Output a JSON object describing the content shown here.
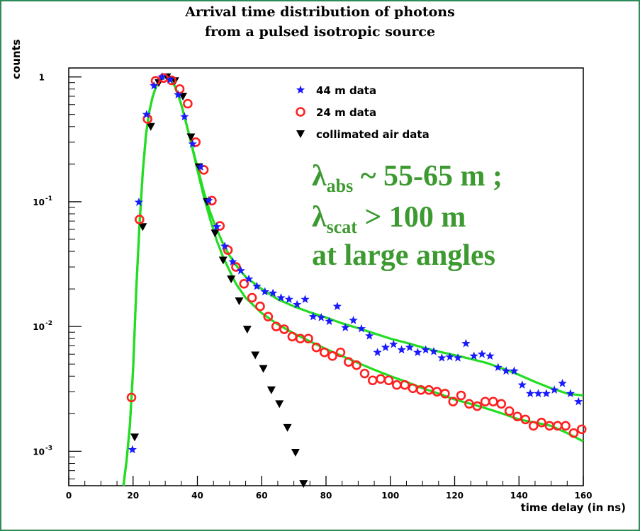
{
  "chart_data": {
    "type": "scatter",
    "title": "Arrival time distribution of photons",
    "subtitle": "from a pulsed isotropic source",
    "xlabel": "time delay (in ns)",
    "ylabel": "counts",
    "xlim": [
      0,
      160
    ],
    "ylim": [
      0.00053,
      1.18
    ],
    "yscale": "log",
    "xticks": [
      "0",
      "20",
      "40",
      "60",
      "80",
      "100",
      "120",
      "140",
      "160"
    ],
    "yticks": [
      {
        "value": 1,
        "label": "1",
        "exp": ""
      },
      {
        "value": 0.1,
        "label": "10",
        "exp": "-1"
      },
      {
        "value": 0.01,
        "label": "10",
        "exp": "-2"
      },
      {
        "value": 0.001,
        "label": "10",
        "exp": "-3"
      }
    ],
    "grid": false,
    "legend_position": "top-right",
    "series": [
      {
        "name": "44 m data",
        "marker": "star",
        "color": "#1a1aff",
        "points": [
          [
            19.8,
            0.00103
          ],
          [
            21.8,
            0.099
          ],
          [
            24.2,
            0.5
          ],
          [
            26.5,
            0.85
          ],
          [
            29,
            1.0
          ],
          [
            31.5,
            0.95
          ],
          [
            34,
            0.72
          ],
          [
            36,
            0.48
          ],
          [
            38.5,
            0.29
          ],
          [
            41,
            0.19
          ],
          [
            43.5,
            0.102
          ],
          [
            46,
            0.063
          ],
          [
            48.5,
            0.044
          ],
          [
            51,
            0.033
          ],
          [
            53.5,
            0.028
          ],
          [
            56,
            0.024
          ],
          [
            58.5,
            0.021
          ],
          [
            61,
            0.019
          ],
          [
            63.5,
            0.0185
          ],
          [
            66,
            0.017
          ],
          [
            68.5,
            0.0165
          ],
          [
            71,
            0.015
          ],
          [
            73.5,
            0.0165
          ],
          [
            76,
            0.012
          ],
          [
            78.5,
            0.0118
          ],
          [
            81,
            0.011
          ],
          [
            83.5,
            0.0145
          ],
          [
            86,
            0.0098
          ],
          [
            88.5,
            0.0112
          ],
          [
            91,
            0.0096
          ],
          [
            93.5,
            0.0084
          ],
          [
            96,
            0.0062
          ],
          [
            98.5,
            0.0068
          ],
          [
            101,
            0.0072
          ],
          [
            103.5,
            0.0065
          ],
          [
            106,
            0.0068
          ],
          [
            108.5,
            0.0062
          ],
          [
            111,
            0.0065
          ],
          [
            113.5,
            0.0063
          ],
          [
            116,
            0.0056
          ],
          [
            118.5,
            0.0057
          ],
          [
            121,
            0.0056
          ],
          [
            123.5,
            0.0073
          ],
          [
            126,
            0.0058
          ],
          [
            128.5,
            0.006
          ],
          [
            131,
            0.0058
          ],
          [
            133.5,
            0.0047
          ],
          [
            136,
            0.0044
          ],
          [
            138.5,
            0.0044
          ],
          [
            141,
            0.0034
          ],
          [
            143.5,
            0.0029
          ],
          [
            146,
            0.0029
          ],
          [
            148.5,
            0.0029
          ],
          [
            151,
            0.0031
          ],
          [
            153.5,
            0.0035
          ],
          [
            156,
            0.0029
          ],
          [
            158.5,
            0.0025
          ]
        ]
      },
      {
        "name": "24 m data",
        "marker": "circle",
        "color": "#ff2020",
        "points": [
          [
            19.5,
            0.0027
          ],
          [
            22,
            0.072
          ],
          [
            24.5,
            0.46
          ],
          [
            27,
            0.93
          ],
          [
            29.5,
            0.98
          ],
          [
            32,
            0.94
          ],
          [
            34.5,
            0.8
          ],
          [
            37,
            0.61
          ],
          [
            39.5,
            0.3
          ],
          [
            42,
            0.18
          ],
          [
            44.5,
            0.102
          ],
          [
            47,
            0.064
          ],
          [
            49.5,
            0.041
          ],
          [
            52,
            0.03
          ],
          [
            54.5,
            0.022
          ],
          [
            57,
            0.017
          ],
          [
            59.5,
            0.0145
          ],
          [
            62,
            0.012
          ],
          [
            64.5,
            0.01
          ],
          [
            67,
            0.0095
          ],
          [
            69.5,
            0.0083
          ],
          [
            72,
            0.008
          ],
          [
            74.5,
            0.008
          ],
          [
            77,
            0.0068
          ],
          [
            79.5,
            0.0062
          ],
          [
            82,
            0.0058
          ],
          [
            84.5,
            0.0062
          ],
          [
            87,
            0.0052
          ],
          [
            89.5,
            0.0049
          ],
          [
            92,
            0.0042
          ],
          [
            94.5,
            0.0037
          ],
          [
            97,
            0.0038
          ],
          [
            99.5,
            0.0037
          ],
          [
            102,
            0.0034
          ],
          [
            104.5,
            0.0034
          ],
          [
            107,
            0.0032
          ],
          [
            109.5,
            0.0031
          ],
          [
            112,
            0.0031
          ],
          [
            114.5,
            0.003
          ],
          [
            117,
            0.0029
          ],
          [
            119.5,
            0.0025
          ],
          [
            122,
            0.0028
          ],
          [
            124.5,
            0.0024
          ],
          [
            127,
            0.0023
          ],
          [
            129.5,
            0.0025
          ],
          [
            132,
            0.0025
          ],
          [
            134.5,
            0.0024
          ],
          [
            137,
            0.0021
          ],
          [
            139.5,
            0.0019
          ],
          [
            142,
            0.0018
          ],
          [
            144.5,
            0.0016
          ],
          [
            147,
            0.0017
          ],
          [
            149.5,
            0.0016
          ],
          [
            152,
            0.0016
          ],
          [
            154.5,
            0.0016
          ],
          [
            157,
            0.0014
          ],
          [
            159.5,
            0.0015
          ]
        ]
      },
      {
        "name": "collimated air data",
        "marker": "triangle-down",
        "color": "#000000",
        "points": [
          [
            20.5,
            0.0013
          ],
          [
            23,
            0.063
          ],
          [
            25.5,
            0.4
          ],
          [
            28,
            0.9
          ],
          [
            30.5,
            1.0
          ],
          [
            33,
            0.93
          ],
          [
            35.5,
            0.7
          ],
          [
            38,
            0.33
          ],
          [
            40.5,
            0.19
          ],
          [
            43,
            0.1
          ],
          [
            45.5,
            0.056
          ],
          [
            48,
            0.034
          ],
          [
            50.5,
            0.024
          ],
          [
            53,
            0.016
          ],
          [
            55.5,
            0.0095
          ],
          [
            58,
            0.0059
          ],
          [
            60.5,
            0.0046
          ],
          [
            63,
            0.0031
          ],
          [
            65.5,
            0.0024
          ],
          [
            68,
            0.00155
          ],
          [
            70.5,
            0.00098
          ],
          [
            73,
            0.00055
          ]
        ]
      },
      {
        "name": "",
        "marker": "line",
        "color": "#22dd22",
        "points": [
          [
            17,
            0.0005
          ],
          [
            18,
            0.00085
          ],
          [
            19,
            0.0016
          ],
          [
            20,
            0.0045
          ],
          [
            21,
            0.02
          ],
          [
            22,
            0.065
          ],
          [
            23,
            0.17
          ],
          [
            24,
            0.34
          ],
          [
            25,
            0.52
          ],
          [
            26,
            0.68
          ],
          [
            27,
            0.82
          ],
          [
            28,
            0.92
          ],
          [
            29,
            0.98
          ],
          [
            30,
            1.0
          ],
          [
            31,
            0.98
          ],
          [
            32,
            0.92
          ],
          [
            33,
            0.84
          ],
          [
            34,
            0.72
          ],
          [
            35,
            0.6
          ],
          [
            36,
            0.48
          ],
          [
            37,
            0.38
          ],
          [
            38,
            0.3
          ],
          [
            40,
            0.19
          ],
          [
            42,
            0.12
          ],
          [
            44,
            0.082
          ],
          [
            46,
            0.06
          ],
          [
            48,
            0.046
          ],
          [
            50,
            0.037
          ],
          [
            52,
            0.031
          ],
          [
            55,
            0.025
          ],
          [
            60,
            0.02
          ],
          [
            65,
            0.0165
          ],
          [
            70,
            0.0145
          ],
          [
            75,
            0.013
          ],
          [
            80,
            0.0118
          ],
          [
            85,
            0.0106
          ],
          [
            90,
            0.0097
          ],
          [
            95,
            0.0088
          ],
          [
            100,
            0.008
          ],
          [
            105,
            0.0074
          ],
          [
            110,
            0.0068
          ],
          [
            115,
            0.0063
          ],
          [
            120,
            0.0059
          ],
          [
            125,
            0.0055
          ],
          [
            130,
            0.0051
          ],
          [
            135,
            0.0046
          ],
          [
            140,
            0.0041
          ],
          [
            145,
            0.0036
          ],
          [
            150,
            0.0032
          ],
          [
            155,
            0.0029
          ],
          [
            160,
            0.0028
          ]
        ]
      },
      {
        "name": "",
        "marker": "line",
        "color": "#22dd22",
        "points": [
          [
            17,
            0.0005
          ],
          [
            18,
            0.00085
          ],
          [
            19,
            0.0016
          ],
          [
            20,
            0.0045
          ],
          [
            21,
            0.02
          ],
          [
            22,
            0.065
          ],
          [
            23,
            0.17
          ],
          [
            24,
            0.34
          ],
          [
            25,
            0.52
          ],
          [
            26,
            0.68
          ],
          [
            27,
            0.82
          ],
          [
            28,
            0.92
          ],
          [
            29,
            0.98
          ],
          [
            30,
            1.0
          ],
          [
            31,
            0.98
          ],
          [
            32,
            0.92
          ],
          [
            33,
            0.84
          ],
          [
            34,
            0.72
          ],
          [
            35,
            0.6
          ],
          [
            36,
            0.48
          ],
          [
            37,
            0.38
          ],
          [
            38,
            0.3
          ],
          [
            40,
            0.18
          ],
          [
            42,
            0.11
          ],
          [
            44,
            0.072
          ],
          [
            46,
            0.049
          ],
          [
            48,
            0.036
          ],
          [
            50,
            0.028
          ],
          [
            52,
            0.022
          ],
          [
            55,
            0.017
          ],
          [
            60,
            0.0128
          ],
          [
            65,
            0.0104
          ],
          [
            70,
            0.0088
          ],
          [
            75,
            0.0076
          ],
          [
            80,
            0.0066
          ],
          [
            85,
            0.0058
          ],
          [
            90,
            0.0051
          ],
          [
            95,
            0.0045
          ],
          [
            100,
            0.004
          ],
          [
            105,
            0.0036
          ],
          [
            110,
            0.0032
          ],
          [
            115,
            0.0029
          ],
          [
            120,
            0.0026
          ],
          [
            125,
            0.0024
          ],
          [
            130,
            0.0022
          ],
          [
            135,
            0.002
          ],
          [
            140,
            0.0018
          ],
          [
            145,
            0.0017
          ],
          [
            150,
            0.0016
          ],
          [
            155,
            0.0014
          ],
          [
            160,
            0.0012
          ]
        ]
      }
    ],
    "annotation": {
      "line1_main": "λ",
      "line1_sub": "abs",
      "line1_rest": " ~ 55-65 m ;",
      "line2_main": "λ",
      "line2_sub": "scat",
      "line2_rest": " > 100 m",
      "line3": "at large angles",
      "color": "#3c9a30"
    }
  }
}
